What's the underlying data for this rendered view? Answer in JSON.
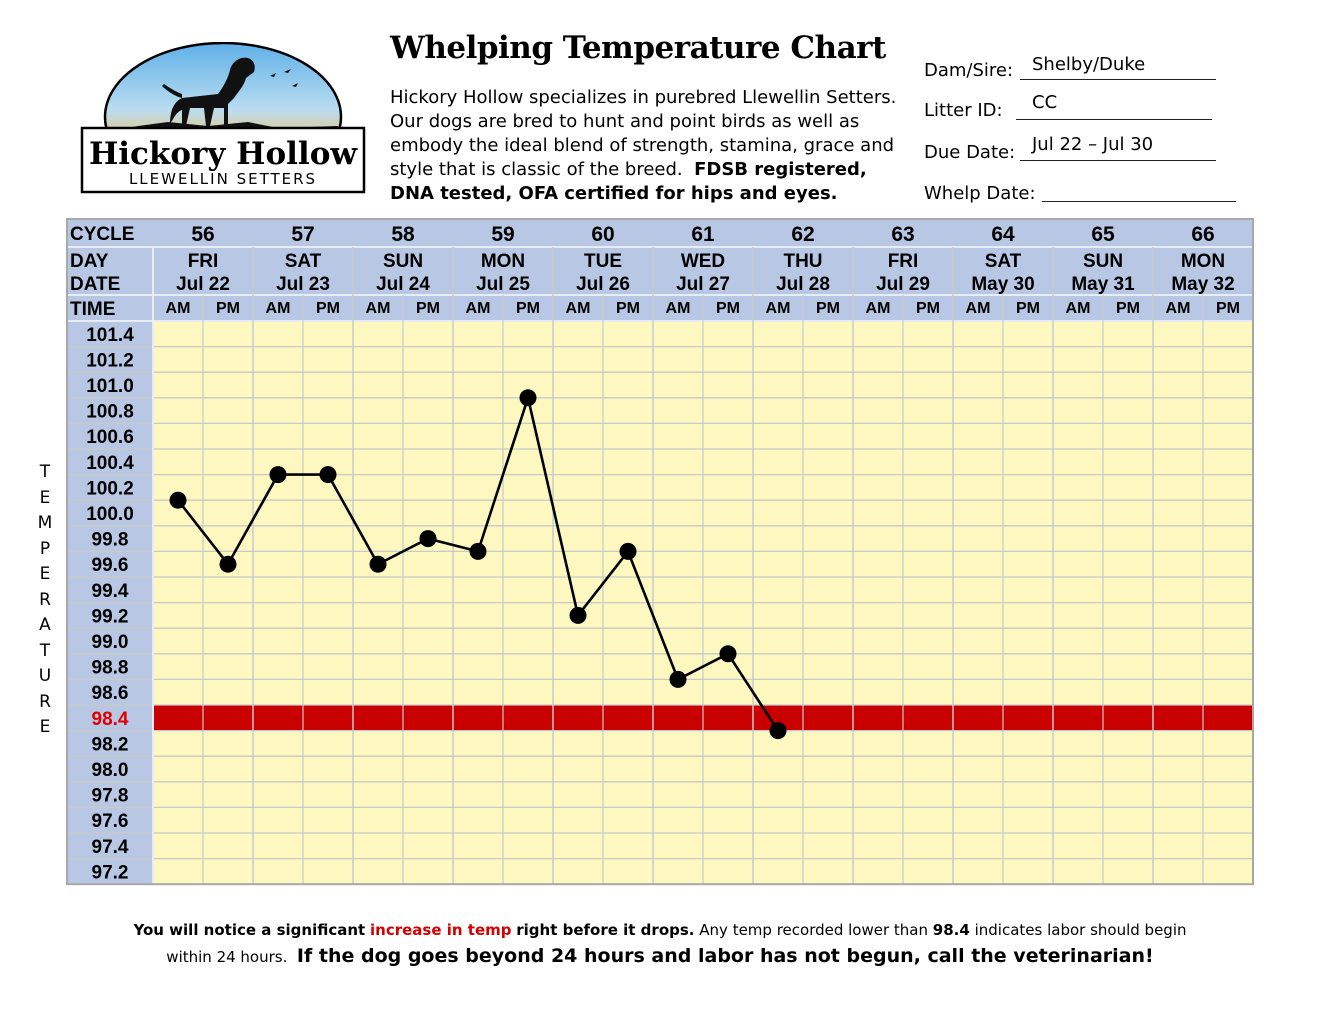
{
  "header": {
    "title": "Whelping Temperature Chart",
    "intro_lines": [
      "Hickory Hollow specializes in purebred Llewellin Setters.",
      "Our dogs are bred to hunt and point birds as well as",
      "embody the ideal blend of strength, stamina, grace and",
      "style that is classic of the breed."
    ],
    "intro_bold_1": "FDSB registered,",
    "intro_bold_2": "DNA tested, OFA certified for hips and eyes."
  },
  "logo": {
    "line1": "Hickory Hollow",
    "line2": "LLEWELLIN SETTERS",
    "icon": "setter-dog-silhouette-icon"
  },
  "form": {
    "dam_sire_label": "Dam/Sire:",
    "dam_sire_value": "Shelby/Duke",
    "litter_label": "Litter ID:",
    "litter_value": "CC",
    "due_label": "Due Date:",
    "due_value": "Jul 22 – Jul 30",
    "whelp_label": "Whelp Date:",
    "whelp_value": ""
  },
  "chart_data": {
    "type": "line",
    "row_labels": {
      "cycle": "CYCLE",
      "day": "DAY",
      "date": "DATE",
      "time": "TIME"
    },
    "cycles": [
      "56",
      "57",
      "58",
      "59",
      "60",
      "61",
      "62",
      "63",
      "64",
      "65",
      "66"
    ],
    "days": [
      "FRI",
      "SAT",
      "SUN",
      "MON",
      "TUE",
      "WED",
      "THU",
      "FRI",
      "SAT",
      "SUN",
      "MON"
    ],
    "dates": [
      "Jul 22",
      "Jul 23",
      "Jul 24",
      "Jul 25",
      "Jul 26",
      "Jul 27",
      "Jul 28",
      "Jul 29",
      "May 30",
      "May 31",
      "May 32"
    ],
    "times": [
      "AM",
      "PM"
    ],
    "y_ticks": [
      "101.4",
      "101.2",
      "101.0",
      "100.8",
      "100.6",
      "100.4",
      "100.2",
      "100.0",
      "99.8",
      "99.6",
      "99.4",
      "99.2",
      "99.0",
      "98.8",
      "98.6",
      "98.4",
      "98.2",
      "98.0",
      "97.8",
      "97.6",
      "97.4",
      "97.2"
    ],
    "ylabel": "TEMPERATURE",
    "threshold": 98.4,
    "x": [
      "Jul 22 AM",
      "Jul 22 PM",
      "Jul 23 AM",
      "Jul 23 PM",
      "Jul 24 AM",
      "Jul 24 PM",
      "Jul 25 AM",
      "Jul 25 PM",
      "Jul 26 AM",
      "Jul 26 PM",
      "Jul 27 AM",
      "Jul 27 PM",
      "Jul 28 AM"
    ],
    "values": [
      100.1,
      99.6,
      100.3,
      100.3,
      99.6,
      99.8,
      99.7,
      100.9,
      99.2,
      99.7,
      98.7,
      98.9,
      98.3
    ],
    "colors": {
      "header_blue": "#b8c8e4",
      "grid_yellow": "#fcf8c0",
      "threshold_red": "#c80000",
      "threshold_label": "#e00000",
      "line": "#000000"
    }
  },
  "footnote": {
    "part1": "You will notice a significant",
    "part2": "increase in temp",
    "part3": "right before it drops.",
    "part4": "Any temp recorded lower than",
    "part5": "98.4",
    "part6": "indicates labor should begin",
    "part7": "within 24 hours.",
    "part8": "If the dog goes beyond 24 hours and labor has not begun, call the veterinarian!"
  }
}
